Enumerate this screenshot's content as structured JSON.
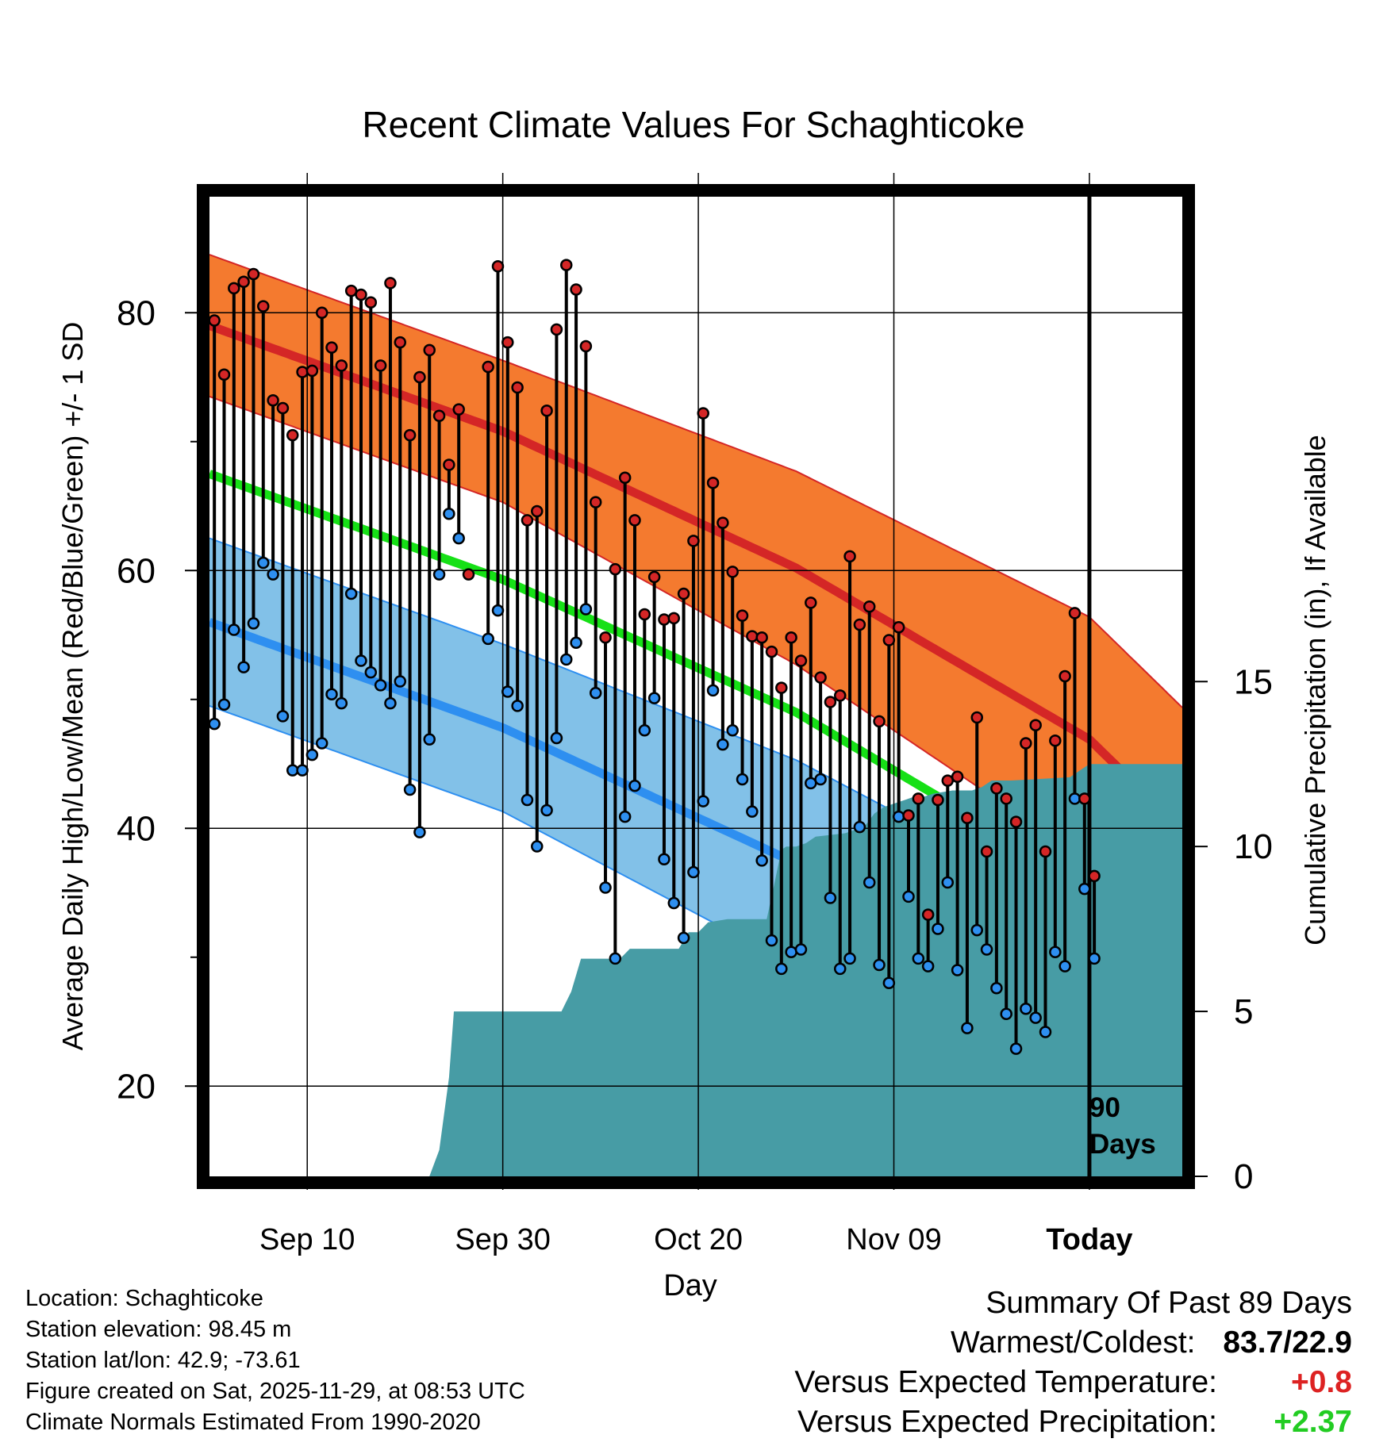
{
  "chart_data": {
    "type": "climate-line-band",
    "title": "Recent Climate Values For Schaghticoke",
    "xlabel": "Day",
    "ylabel_left": "Average Daily High/Low/Mean (Red/Blue/Green) +/- 1 SD",
    "ylabel_right": "Cumulative Precipitation (in), If Available",
    "x_tick_labels": [
      {
        "day": 10,
        "label": "Sep 10"
      },
      {
        "day": 30,
        "label": "Sep 30"
      },
      {
        "day": 50,
        "label": "Oct 20"
      },
      {
        "day": 70,
        "label": "Nov 09"
      },
      {
        "day": 90,
        "label": "Today"
      }
    ],
    "xlim": [
      0,
      99.5
    ],
    "ylim_left": [
      13,
      89
    ],
    "ylim_right": [
      0,
      29.7
    ],
    "y_ticks_left": [
      20,
      40,
      60,
      80
    ],
    "y_minor_ticks_left": [
      30,
      50,
      70
    ],
    "y_ticks_right": [
      0,
      5,
      10,
      15
    ],
    "normals": {
      "high_mean": {
        "day": [
          0,
          30,
          60,
          90,
          100
        ],
        "value": [
          79.0,
          70.8,
          60.2,
          46.9,
          39.5
        ]
      },
      "high_sd": {
        "day": [
          0,
          30,
          60,
          90,
          100
        ],
        "value": [
          5.5,
          5.5,
          7.5,
          9.5,
          9.5
        ]
      },
      "low_mean": {
        "day": [
          0,
          30,
          60,
          90,
          100
        ],
        "value": [
          56.0,
          47.8,
          37.3,
          25.3,
          19.2
        ]
      },
      "low_sd": {
        "day": [
          0,
          30,
          60,
          90,
          100
        ],
        "value": [
          6.5,
          6.5,
          8.0,
          8.0,
          8.0
        ]
      },
      "mean": {
        "day": [
          0,
          30,
          60,
          90,
          100
        ],
        "value": [
          67.5,
          59.3,
          49.0,
          35.5,
          32.0
        ]
      }
    },
    "daily_high": [
      79.4,
      75.2,
      81.9,
      82.4,
      83.0,
      80.5,
      73.2,
      72.6,
      70.5,
      75.4,
      75.5,
      80.0,
      77.3,
      75.9,
      81.7,
      81.4,
      80.8,
      75.9,
      82.3,
      77.7,
      70.5,
      75.0,
      77.1,
      72.0,
      68.2,
      72.5,
      59.7,
      null,
      75.8,
      83.6,
      77.7,
      74.2,
      63.9,
      64.6,
      72.4,
      78.7,
      83.7,
      81.8,
      77.4,
      65.3,
      54.8,
      60.1,
      67.2,
      63.9,
      56.6,
      59.5,
      56.2,
      56.3,
      58.2,
      62.3,
      72.2,
      66.8,
      63.7,
      59.9,
      56.5,
      54.9,
      54.8,
      53.7,
      50.9,
      54.8,
      53.0,
      57.5,
      51.7,
      49.8,
      50.3,
      61.1,
      55.8,
      57.2,
      48.3,
      54.6,
      55.6,
      41.0,
      42.3,
      33.3,
      42.2,
      43.7,
      44.0,
      40.8,
      48.6,
      38.2,
      43.1,
      42.3,
      40.5,
      46.6,
      48.0,
      38.2,
      46.8,
      51.8,
      56.7,
      42.3,
      36.3
    ],
    "daily_low": [
      48.1,
      49.6,
      55.4,
      52.5,
      55.9,
      60.6,
      59.7,
      48.7,
      44.5,
      44.5,
      45.7,
      46.6,
      50.4,
      49.7,
      58.2,
      53.0,
      52.1,
      51.1,
      49.7,
      51.4,
      43.0,
      39.7,
      46.9,
      59.7,
      64.4,
      62.5,
      null,
      null,
      54.7,
      56.9,
      50.6,
      49.5,
      42.2,
      38.6,
      41.4,
      47.0,
      53.1,
      54.4,
      57.0,
      50.5,
      35.4,
      29.9,
      40.9,
      43.3,
      47.6,
      50.1,
      37.6,
      34.2,
      31.5,
      36.6,
      42.1,
      50.7,
      46.5,
      47.6,
      43.8,
      41.3,
      37.5,
      31.3,
      29.1,
      30.4,
      30.6,
      43.5,
      43.8,
      34.6,
      29.1,
      29.9,
      40.1,
      35.8,
      29.4,
      28.0,
      40.9,
      34.7,
      29.9,
      29.3,
      32.2,
      35.8,
      29.0,
      24.5,
      32.1,
      30.6,
      27.6,
      25.6,
      22.9,
      26.0,
      25.3,
      24.2,
      30.4,
      29.3,
      42.3,
      35.3,
      29.9
    ],
    "cumulative_precipitation": {
      "day": [
        0,
        22.5,
        23.5,
        24.5,
        25,
        26,
        27,
        36,
        37,
        38,
        40,
        42,
        43,
        45,
        48,
        49,
        50,
        51,
        53,
        56,
        57,
        57.8,
        58.5,
        59,
        60,
        61,
        62,
        65,
        67,
        68,
        69,
        70,
        72,
        73,
        74,
        76,
        78,
        79,
        80,
        81,
        82,
        88,
        90,
        99.5
      ],
      "value": [
        0,
        0,
        0.8,
        3.0,
        5.0,
        5.0,
        5.0,
        5.0,
        5.6,
        6.6,
        6.6,
        6.6,
        6.9,
        6.9,
        6.9,
        7.4,
        7.4,
        7.7,
        7.8,
        7.8,
        7.8,
        8.9,
        9.9,
        10.0,
        10.0,
        10.1,
        10.3,
        10.4,
        10.6,
        11.0,
        11.2,
        11.3,
        11.5,
        11.5,
        11.6,
        11.7,
        11.7,
        11.8,
        12.0,
        12.0,
        12.0,
        12.1,
        12.5,
        12.5
      ]
    }
  },
  "days_note": [
    "90",
    "Days"
  ],
  "meta": [
    "Location: Schaghticoke",
    "Station elevation: 98.45 m",
    "Station lat/lon: 42.9; -73.61",
    "Figure created on Sat, 2025-11-29, at 08:53 UTC",
    "Climate Normals Estimated From 1990-2020"
  ],
  "summary": {
    "heading": "Summary Of Past 89 Days",
    "warm_cold_label": "Warmest/Coldest:",
    "warm_cold_value": "83.7/22.9",
    "temp_label": "Versus Expected Temperature:",
    "temp_value": "+0.8",
    "precip_label": "Versus Expected Precipitation:",
    "precip_value": "+2.37"
  },
  "colors": {
    "high_band": "#f47a2f",
    "high_line": "#d42626",
    "low_band": "#82c1e8",
    "low_line": "#2e8ff0",
    "mean_line": "#16e016",
    "precip_fill": "#479ca5",
    "high_dot": "#d42626",
    "low_dot": "#2e8ff0"
  }
}
